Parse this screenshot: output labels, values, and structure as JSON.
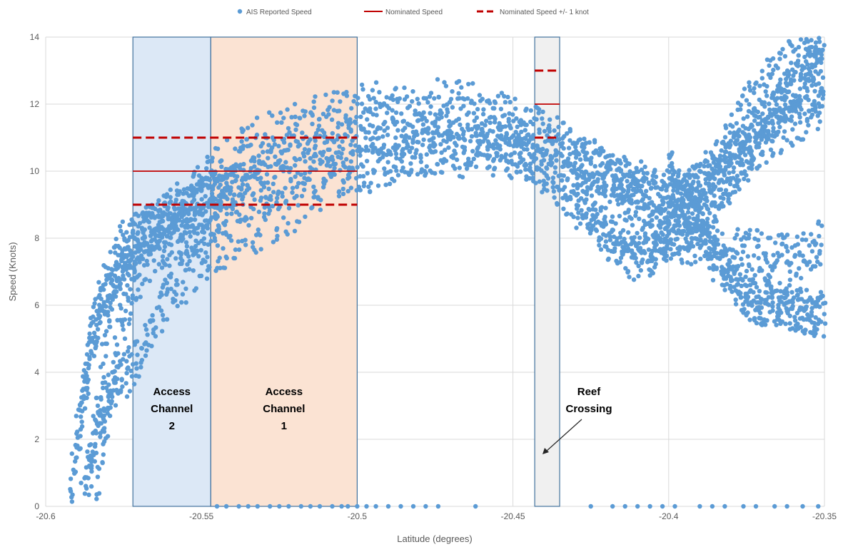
{
  "chart_data": {
    "type": "scatter",
    "xlabel": "Latitude (degrees)",
    "ylabel": "Speed (Knots)",
    "xlim": [
      -20.6,
      -20.35
    ],
    "ylim": [
      0,
      14
    ],
    "xticks": [
      "-20.6",
      "-20.55",
      "-20.5",
      "-20.45",
      "-20.4",
      "-20.35"
    ],
    "yticks": [
      "0",
      "2",
      "4",
      "6",
      "8",
      "10",
      "12",
      "14"
    ],
    "grid": true,
    "legend_position": "top",
    "legend": [
      {
        "label": "AIS Reported Speed",
        "style": "marker",
        "color": "#5b9bd5"
      },
      {
        "label": "Nominated Speed",
        "style": "solid",
        "color": "#c00000"
      },
      {
        "label": "Nominated Speed +/- 1 knot",
        "style": "dashed",
        "color": "#c00000"
      }
    ],
    "zones": [
      {
        "label_lines": [
          "Access",
          "Channel",
          "2"
        ],
        "x_start": -20.572,
        "x_end": -20.547,
        "fill": "#dce8f6"
      },
      {
        "label_lines": [
          "Access",
          "Channel",
          "1"
        ],
        "x_start": -20.547,
        "x_end": -20.5,
        "fill": "#fbe3d3"
      },
      {
        "label_lines": [
          "Reef",
          "Crossing"
        ],
        "x_start": -20.443,
        "x_end": -20.435,
        "fill": "#f0f0f0"
      }
    ],
    "nominated_speed": [
      {
        "x": [
          -20.572,
          -20.5
        ],
        "y": 10
      },
      {
        "x": [
          -20.443,
          -20.435
        ],
        "y": 12
      }
    ],
    "nominated_band": [
      {
        "x": [
          -20.572,
          -20.5
        ],
        "y": 11
      },
      {
        "x": [
          -20.572,
          -20.5
        ],
        "y": 9
      },
      {
        "x": [
          -20.443,
          -20.435
        ],
        "y": 13
      },
      {
        "x": [
          -20.443,
          -20.435
        ],
        "y": 11
      }
    ],
    "ais_reported_speed": {
      "name": "AIS Reported Speed",
      "sampled_profiles": [
        {
          "x": [
            -20.592,
            -20.585,
            -20.578,
            -20.57,
            -20.56,
            -20.55,
            -20.54,
            -20.52,
            -20.5,
            -20.48,
            -20.46,
            -20.44,
            -20.42,
            -20.41,
            -20.4,
            -20.39,
            -20.38,
            -20.37,
            -20.36,
            -20.35
          ],
          "y": [
            0.3,
            5.0,
            7.0,
            8.0,
            8.5,
            9.0,
            9.5,
            10.2,
            10.8,
            11.0,
            10.8,
            10.5,
            9.8,
            9.5,
            9.0,
            9.5,
            10.5,
            11.5,
            12.2,
            12.8
          ]
        },
        {
          "x": [
            -20.59,
            -20.583,
            -20.575,
            -20.565,
            -20.555,
            -20.545,
            -20.53,
            -20.51,
            -20.49,
            -20.47,
            -20.45,
            -20.43,
            -20.42,
            -20.41,
            -20.4,
            -20.39,
            -20.38,
            -20.37,
            -20.36,
            -20.35
          ],
          "y": [
            2.0,
            6.0,
            7.8,
            8.4,
            8.8,
            9.6,
            10.5,
            11.2,
            11.5,
            11.6,
            11.4,
            10.6,
            10.0,
            8.8,
            8.0,
            8.5,
            9.8,
            11.0,
            12.5,
            13.5
          ]
        },
        {
          "x": [
            -20.588,
            -20.58,
            -20.572,
            -20.562,
            -20.552,
            -20.542,
            -20.525,
            -20.505,
            -20.485,
            -20.465,
            -20.445,
            -20.43,
            -20.42,
            -20.4,
            -20.38,
            -20.37,
            -20.36,
            -20.35
          ],
          "y": [
            0.5,
            3.5,
            4.1,
            6.0,
            7.2,
            7.8,
            8.6,
            9.8,
            10.4,
            10.8,
            10.6,
            9.0,
            8.2,
            8.0,
            7.7,
            7.5,
            7.4,
            7.9
          ]
        },
        {
          "x": [
            -20.586,
            -20.578,
            -20.568,
            -20.558,
            -20.548,
            -20.535,
            -20.515,
            -20.495,
            -20.475,
            -20.455,
            -20.44,
            -20.425,
            -20.415,
            -20.405,
            -20.395,
            -20.385,
            -20.375,
            -20.365,
            -20.355,
            -20.35
          ],
          "y": [
            1.0,
            6.5,
            8.2,
            8.9,
            9.8,
            10.8,
            11.5,
            12.0,
            12.1,
            11.8,
            11.2,
            10.2,
            9.8,
            9.5,
            9.2,
            10.2,
            11.8,
            13.0,
            13.8,
            14.0
          ]
        },
        {
          "x": [
            -20.584,
            -20.576,
            -20.566,
            -20.556,
            -20.546,
            -20.536,
            -20.52,
            -20.5,
            -20.48,
            -20.46,
            -20.445,
            -20.43,
            -20.42,
            -20.412,
            -20.405,
            -20.398,
            -20.39,
            -20.38,
            -20.37,
            -20.36,
            -20.35
          ],
          "y": [
            0.0,
            5.5,
            7.5,
            8.1,
            8.6,
            9.2,
            9.8,
            10.1,
            10.5,
            10.4,
            10.3,
            9.5,
            8.0,
            7.4,
            7.6,
            8.2,
            9.0,
            10.0,
            10.8,
            11.5,
            12.0
          ]
        },
        {
          "x": [
            -20.4,
            -20.395,
            -20.39,
            -20.385,
            -20.38,
            -20.375,
            -20.37,
            -20.365,
            -20.36,
            -20.355,
            -20.35
          ],
          "y": [
            10.0,
            9.2,
            8.3,
            7.4,
            6.7,
            6.3,
            6.1,
            6.0,
            5.9,
            5.8,
            5.7
          ]
        }
      ],
      "zero_speed_x": [
        -20.545,
        -20.542,
        -20.538,
        -20.535,
        -20.532,
        -20.528,
        -20.525,
        -20.522,
        -20.518,
        -20.515,
        -20.512,
        -20.508,
        -20.505,
        -20.503,
        -20.5,
        -20.497,
        -20.494,
        -20.49,
        -20.486,
        -20.482,
        -20.478,
        -20.474,
        -20.462,
        -20.425,
        -20.418,
        -20.414,
        -20.41,
        -20.406,
        -20.402,
        -20.398,
        -20.39,
        -20.386,
        -20.382,
        -20.376,
        -20.372,
        -20.366,
        -20.362,
        -20.357,
        -20.352
      ]
    }
  }
}
